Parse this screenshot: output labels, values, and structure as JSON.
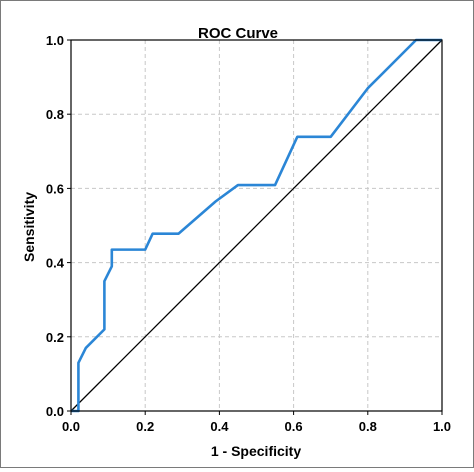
{
  "chart_data": {
    "type": "line",
    "title": "ROC Curve",
    "xlabel": "1 - Specificity",
    "ylabel": "Sensitivity",
    "xlim": [
      0.0,
      1.0
    ],
    "ylim": [
      0.0,
      1.0
    ],
    "x_ticks": [
      "0.0",
      "0.2",
      "0.4",
      "0.6",
      "0.8",
      "1.0"
    ],
    "y_ticks": [
      "0.0",
      "0.2",
      "0.4",
      "0.6",
      "0.8",
      "1.0"
    ],
    "grid": "dashed",
    "series": [
      {
        "color": "#2b86d6",
        "points": [
          [
            0.0,
            0.0
          ],
          [
            0.02,
            0.0
          ],
          [
            0.02,
            0.13
          ],
          [
            0.04,
            0.17
          ],
          [
            0.09,
            0.22
          ],
          [
            0.09,
            0.35
          ],
          [
            0.11,
            0.39
          ],
          [
            0.11,
            0.435
          ],
          [
            0.2,
            0.435
          ],
          [
            0.22,
            0.478
          ],
          [
            0.29,
            0.478
          ],
          [
            0.39,
            0.565
          ],
          [
            0.45,
            0.609
          ],
          [
            0.55,
            0.609
          ],
          [
            0.61,
            0.739
          ],
          [
            0.7,
            0.739
          ],
          [
            0.8,
            0.87
          ],
          [
            0.93,
            1.0
          ],
          [
            1.0,
            1.0
          ]
        ]
      },
      {
        "color": "#000000",
        "points": [
          [
            0.0,
            0.0
          ],
          [
            1.0,
            1.0
          ]
        ]
      }
    ]
  }
}
